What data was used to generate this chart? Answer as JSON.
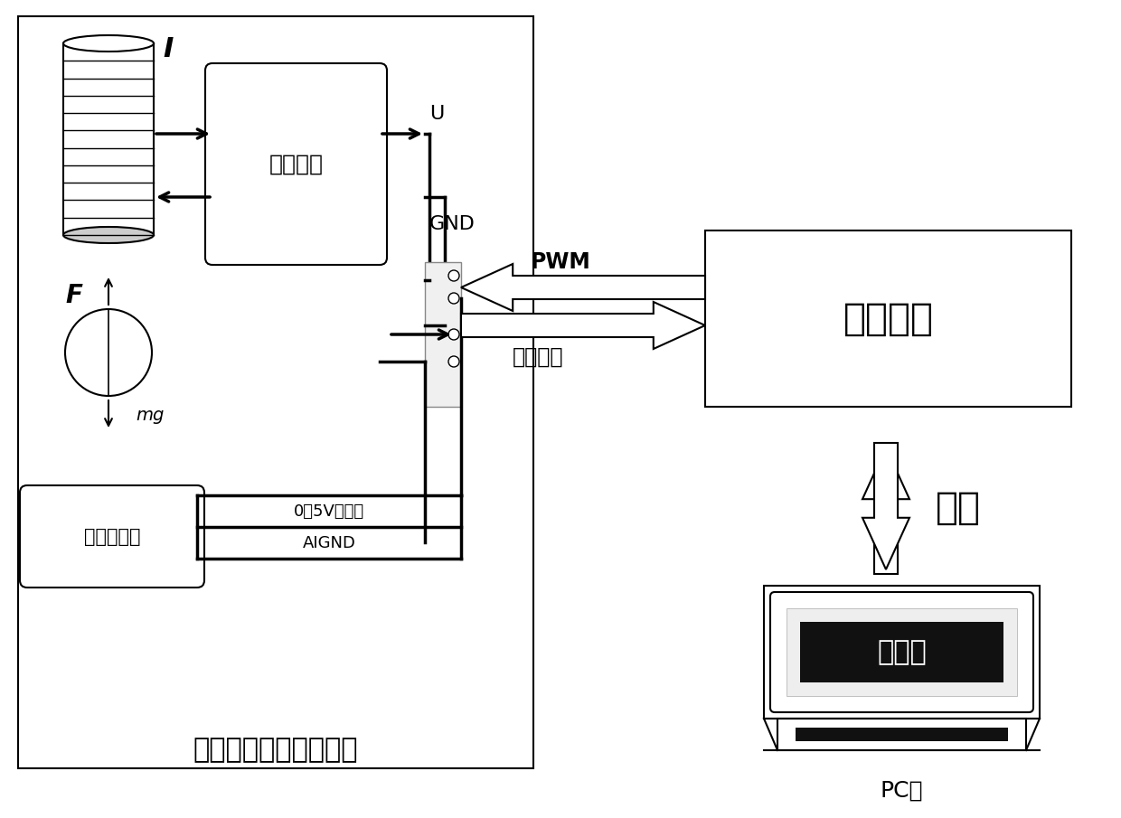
{
  "bg_color": "#ffffff",
  "drive_circuit_label": "驱动电路",
  "control_chip_label": "控制芯片",
  "sensor_label": "位移传感器",
  "pc_inner_label": "上位机",
  "pc_machine_label": "PC机",
  "comm_label": "通信",
  "pwm_label": "PWM",
  "status_label": "状态信号",
  "U_label": "U",
  "GND_label": "GND",
  "I_label": "I",
  "F_label": "F",
  "mg_label": "mg",
  "analog_label": "0～5V模拟量",
  "aignd_label": "AIGND",
  "title_text": "磁悬浮硬件结构示意图"
}
